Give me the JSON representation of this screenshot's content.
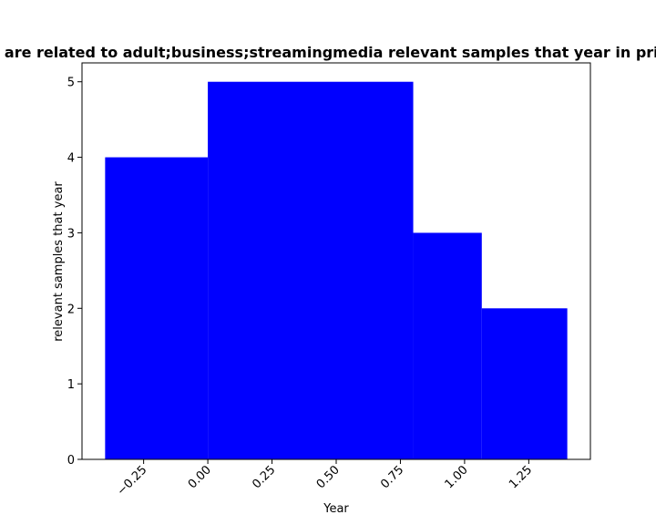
{
  "chart_data": {
    "type": "bar",
    "title": "are related to adult;business;streamingmedia relevant samples that year in priv",
    "xlabel": "Year",
    "ylabel": "relevant samples that year",
    "bars": [
      {
        "x0": -0.4,
        "x1": 0.0,
        "value": 4
      },
      {
        "x0": 0.0,
        "x1": 0.8,
        "value": 5
      },
      {
        "x0": 0.8,
        "x1": 1.067,
        "value": 3
      },
      {
        "x0": 1.067,
        "x1": 1.4,
        "value": 2
      }
    ],
    "xlim": [
      -0.49,
      1.49
    ],
    "ylim": [
      0,
      5.25
    ],
    "xticks": [
      -0.25,
      0.0,
      0.25,
      0.5,
      0.75,
      1.0,
      1.25
    ],
    "xtick_labels": [
      "−0.25",
      "0.00",
      "0.25",
      "0.50",
      "0.75",
      "1.00",
      "1.25"
    ],
    "yticks": [
      0,
      1,
      2,
      3,
      4,
      5
    ],
    "ytick_labels": [
      "0",
      "1",
      "2",
      "3",
      "4",
      "5"
    ],
    "bar_color": "#0000ff",
    "grid": false,
    "legend": "none"
  }
}
